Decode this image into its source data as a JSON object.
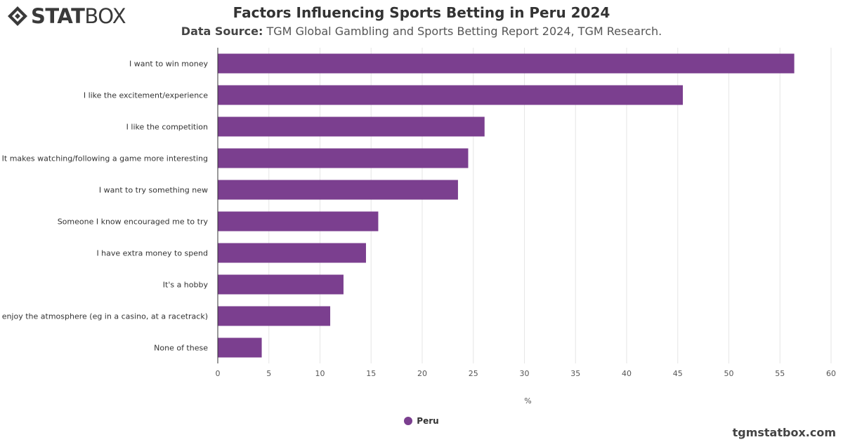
{
  "brand": {
    "logo_stat": "STAT",
    "logo_box": "BOX",
    "site": "tgmstatbox.com"
  },
  "header": {
    "title": "Factors Influencing Sports Betting in Peru 2024",
    "subtitle_prefix": "Data Source:",
    "subtitle_text": "TGM Global Gambling and Sports Betting Report 2024, TGM Research."
  },
  "colors": {
    "bar": "#7b3f8f",
    "grid": "#e6e6e6",
    "axis": "#333333"
  },
  "chart_data": {
    "type": "bar",
    "orientation": "horizontal",
    "categories": [
      "I want to win money",
      "I like the excitement/experience",
      "I like the competition",
      "It makes watching/following a game more interesting",
      "I want to try something new",
      "Someone I know encouraged me to try",
      "I have extra money to spend",
      "It's a hobby",
      "I enjoy the atmosphere (eg in a casino, at a racetrack)",
      "None of these"
    ],
    "series": [
      {
        "name": "Peru",
        "values": [
          56.4,
          45.5,
          26.1,
          24.5,
          23.5,
          15.7,
          14.5,
          12.3,
          11.0,
          4.3
        ]
      }
    ],
    "xlabel": "%",
    "xlim": [
      0,
      60
    ],
    "xticks": [
      0,
      5,
      10,
      15,
      20,
      25,
      30,
      35,
      40,
      45,
      50,
      55,
      60
    ],
    "grid": true,
    "legend": "bottom-center"
  }
}
